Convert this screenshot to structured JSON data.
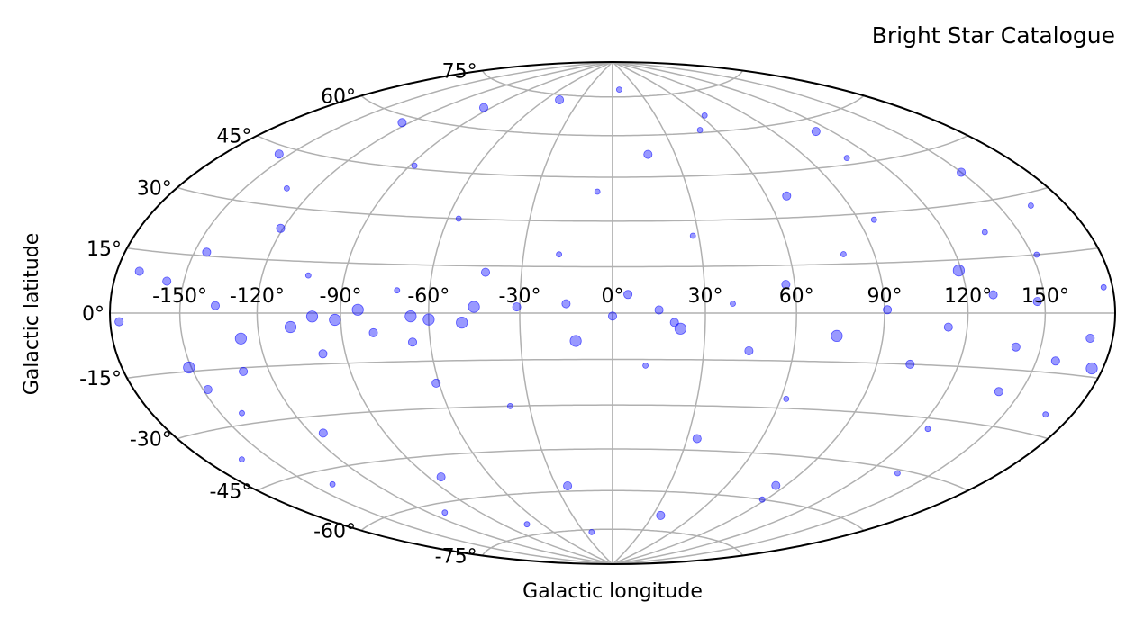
{
  "chart_data": {
    "type": "scatter",
    "projection": "aitoff-hammer-like all-sky ellipse",
    "title": "Bright Star Catalogue",
    "xlabel": "Galactic longitude",
    "ylabel": "Galactic latitude",
    "xlim": [
      -180,
      180
    ],
    "ylim": [
      -90,
      90
    ],
    "x_ticks": [
      -150,
      -120,
      -90,
      -60,
      -30,
      0,
      30,
      60,
      90,
      120,
      150
    ],
    "x_tick_labels": [
      "-150°",
      "-120°",
      "-90°",
      "-60°",
      "-30°",
      "0°",
      "30°",
      "60°",
      "90°",
      "120°",
      "150°"
    ],
    "y_ticks": [
      -75,
      -60,
      -45,
      -30,
      -15,
      0,
      15,
      30,
      45,
      60,
      75
    ],
    "y_tick_labels": [
      "-75°",
      "-60°",
      "-45°",
      "-30°",
      "-15°",
      "0°",
      "15°",
      "30°",
      "45°",
      "60°",
      "75°"
    ],
    "grid": true,
    "marker_color": "#0000ff",
    "marker_alpha": 0.4,
    "grid_color": "#b0b0b0",
    "series": [
      {
        "points": [
          {
            "x": -157,
            "y": 8,
            "s": 2
          },
          {
            "x": -151,
            "y": -14,
            "s": 3
          },
          {
            "x": -148,
            "y": -20,
            "s": 2
          },
          {
            "x": -145,
            "y": 16,
            "s": 2
          },
          {
            "x": -141,
            "y": -27,
            "s": 1
          },
          {
            "x": -136,
            "y": 2,
            "s": 2
          },
          {
            "x": -132,
            "y": 35,
            "s": 1
          },
          {
            "x": -127,
            "y": -7,
            "s": 3
          },
          {
            "x": -121,
            "y": 24,
            "s": 2
          },
          {
            "x": -115,
            "y": -35,
            "s": 2
          },
          {
            "x": -108,
            "y": -4,
            "s": 3
          },
          {
            "x": -103,
            "y": 11,
            "s": 1
          },
          {
            "x": -98,
            "y": -12,
            "s": 2
          },
          {
            "x": -92,
            "y": -2,
            "s": 3
          },
          {
            "x": -88,
            "y": 46,
            "s": 1
          },
          {
            "x": -84,
            "y": -52,
            "s": 2
          },
          {
            "x": -79,
            "y": -6,
            "s": 2
          },
          {
            "x": -71,
            "y": 7,
            "s": 1
          },
          {
            "x": -66,
            "y": -1,
            "s": 3
          },
          {
            "x": -61,
            "y": -22,
            "s": 2
          },
          {
            "x": -56,
            "y": 30,
            "s": 1
          },
          {
            "x": -49,
            "y": -3,
            "s": 3
          },
          {
            "x": -42,
            "y": 13,
            "s": 2
          },
          {
            "x": -37,
            "y": -30,
            "s": 1
          },
          {
            "x": -31,
            "y": 2,
            "s": 2
          },
          {
            "x": -24,
            "y": -58,
            "s": 2
          },
          {
            "x": -18,
            "y": 19,
            "s": 1
          },
          {
            "x": -12,
            "y": -9,
            "s": 3
          },
          {
            "x": -6,
            "y": 40,
            "s": 1
          },
          {
            "x": 0,
            "y": -1,
            "s": 2
          },
          {
            "x": 5,
            "y": 6,
            "s": 2
          },
          {
            "x": 11,
            "y": -17,
            "s": 1
          },
          {
            "x": 17,
            "y": 53,
            "s": 2
          },
          {
            "x": 22,
            "y": -5,
            "s": 3
          },
          {
            "x": 28,
            "y": 25,
            "s": 1
          },
          {
            "x": 34,
            "y": -41,
            "s": 2
          },
          {
            "x": 39,
            "y": 3,
            "s": 1
          },
          {
            "x": 45,
            "y": -12,
            "s": 2
          },
          {
            "x": 51,
            "y": 61,
            "s": 1
          },
          {
            "x": 57,
            "y": 9,
            "s": 2
          },
          {
            "x": 62,
            "y": -27,
            "s": 1
          },
          {
            "x": 68,
            "y": 37,
            "s": 2
          },
          {
            "x": 74,
            "y": -7,
            "s": 3
          },
          {
            "x": 79,
            "y": 18,
            "s": 1
          },
          {
            "x": 85,
            "y": -55,
            "s": 2
          },
          {
            "x": 91,
            "y": 1,
            "s": 2
          },
          {
            "x": 96,
            "y": 28,
            "s": 1
          },
          {
            "x": 102,
            "y": -15,
            "s": 2
          },
          {
            "x": 108,
            "y": 47,
            "s": 1
          },
          {
            "x": 113,
            "y": -4,
            "s": 2
          },
          {
            "x": 119,
            "y": 12,
            "s": 3
          },
          {
            "x": 124,
            "y": -33,
            "s": 1
          },
          {
            "x": 130,
            "y": 5,
            "s": 2
          },
          {
            "x": 136,
            "y": 22,
            "s": 1
          },
          {
            "x": 141,
            "y": -21,
            "s": 2
          },
          {
            "x": 147,
            "y": 3,
            "s": 2
          },
          {
            "x": 152,
            "y": 15,
            "s": 1
          },
          {
            "x": 158,
            "y": -12,
            "s": 2
          },
          {
            "x": 164,
            "y": 27,
            "s": 1
          },
          {
            "x": 170,
            "y": -6,
            "s": 2
          },
          {
            "x": -170,
            "y": 10,
            "s": 2
          },
          {
            "x": -163,
            "y": -38,
            "s": 1
          },
          {
            "x": -155,
            "y": 43,
            "s": 2
          },
          {
            "x": -140,
            "y": -49,
            "s": 1
          },
          {
            "x": -124,
            "y": 58,
            "s": 2
          },
          {
            "x": -111,
            "y": -63,
            "s": 1
          },
          {
            "x": -95,
            "y": 67,
            "s": 2
          },
          {
            "x": -72,
            "y": -71,
            "s": 1
          },
          {
            "x": -48,
            "y": 73,
            "s": 2
          },
          {
            "x": -22,
            "y": -76,
            "s": 1
          },
          {
            "x": 8,
            "y": 78,
            "s": 1
          },
          {
            "x": 36,
            "y": -69,
            "s": 2
          },
          {
            "x": 63,
            "y": 66,
            "s": 1
          },
          {
            "x": 88,
            "y": -60,
            "s": 1
          },
          {
            "x": 112,
            "y": 56,
            "s": 2
          },
          {
            "x": 134,
            "y": -46,
            "s": 1
          },
          {
            "x": 150,
            "y": 38,
            "s": 2
          },
          {
            "x": 168,
            "y": -25,
            "s": 1
          },
          {
            "x": -176,
            "y": -2,
            "s": 2
          },
          {
            "x": 176,
            "y": 6,
            "s": 1
          },
          {
            "x": -60,
            "y": -2,
            "s": 3
          },
          {
            "x": -100,
            "y": -1,
            "s": 3
          },
          {
            "x": -130,
            "y": -16,
            "s": 2
          },
          {
            "x": 20,
            "y": -3,
            "s": 2
          },
          {
            "x": -84,
            "y": 1,
            "s": 3
          },
          {
            "x": -66,
            "y": -9,
            "s": 2
          },
          {
            "x": -45,
            "y": 2,
            "s": 3
          },
          {
            "x": -15,
            "y": 3,
            "s": 2
          },
          {
            "x": 15,
            "y": 1,
            "s": 2
          },
          {
            "x": 140,
            "y": -9,
            "s": 2
          },
          {
            "x": 175,
            "y": -13,
            "s": 3
          }
        ]
      }
    ]
  }
}
